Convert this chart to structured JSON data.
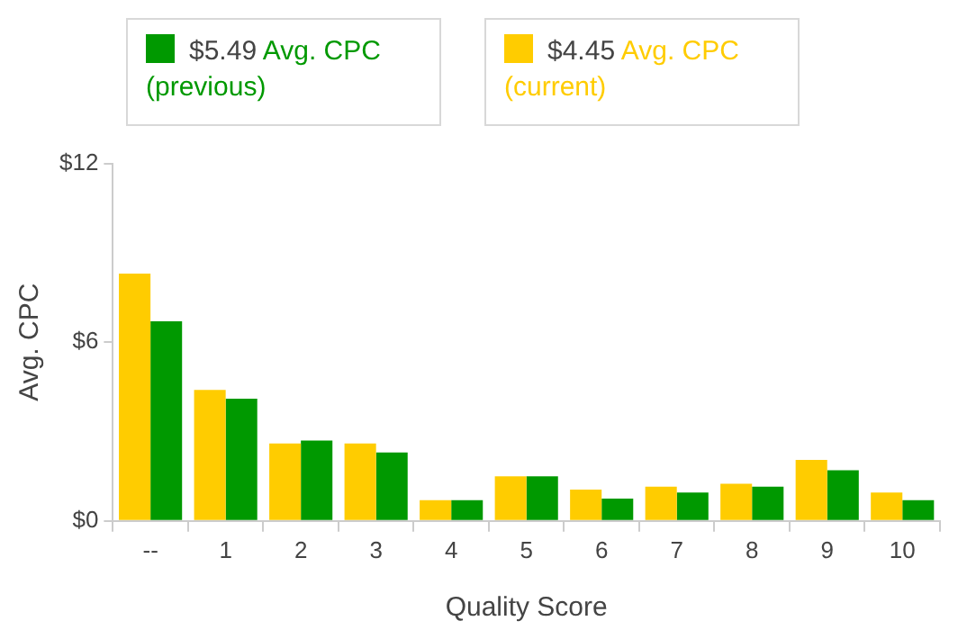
{
  "chart_data": {
    "type": "bar",
    "xlabel": "Quality Score",
    "ylabel": "Avg. CPC",
    "categories": [
      "--",
      "1",
      "2",
      "3",
      "4",
      "5",
      "6",
      "7",
      "8",
      "9",
      "10"
    ],
    "series": [
      {
        "name": "$4.45 Avg. CPC (current)",
        "color": "#ffcc00",
        "values": [
          8.3,
          4.4,
          2.6,
          2.6,
          0.7,
          1.5,
          1.05,
          1.15,
          1.25,
          2.05,
          0.95
        ]
      },
      {
        "name": "$5.49 Avg. CPC (previous)",
        "color": "#009900",
        "values": [
          6.7,
          4.1,
          2.7,
          2.3,
          0.7,
          1.5,
          0.75,
          0.95,
          1.15,
          1.7,
          0.7
        ]
      }
    ],
    "ylim": [
      0,
      12
    ],
    "yticks": [
      {
        "value": 0,
        "label": "$0"
      },
      {
        "value": 6,
        "label": "$6"
      },
      {
        "value": 12,
        "label": "$12"
      }
    ],
    "grid": false,
    "legend": "top"
  }
}
